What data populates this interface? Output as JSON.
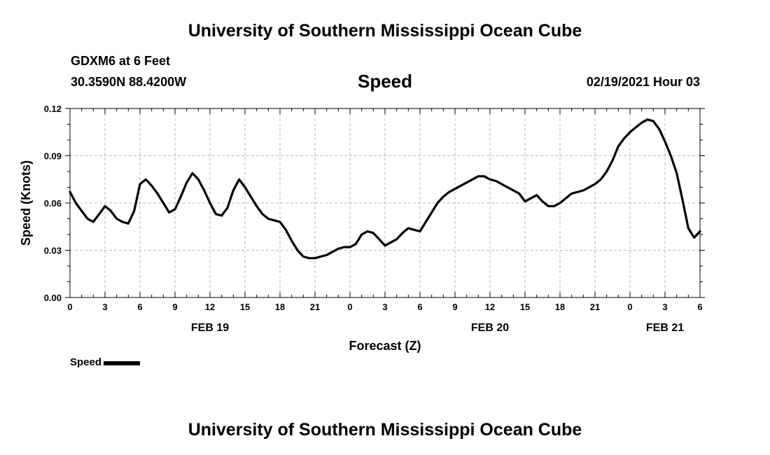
{
  "header": {
    "title": "University of Southern Mississippi Ocean Cube"
  },
  "station": {
    "name": "GDXM6 at 6 Feet",
    "coords": "30.3590N 88.4200W"
  },
  "variable": "Speed",
  "run": "02/19/2021 Hour 03",
  "footer": {
    "title": "University of Southern Mississippi Ocean Cube"
  },
  "legend": {
    "label": "Speed"
  },
  "chart_data": {
    "type": "line",
    "title": "Speed",
    "xlabel": "Forecast (Z)",
    "ylabel": "Speed (Knots)",
    "xlim": [
      0,
      54
    ],
    "ylim": [
      0,
      0.12
    ],
    "yticks": [
      "0.00",
      "0.03",
      "0.06",
      "0.09",
      "0.12"
    ],
    "ytick_values": [
      0,
      0.03,
      0.06,
      0.09,
      0.12
    ],
    "xticks": [
      "0",
      "3",
      "6",
      "9",
      "12",
      "15",
      "18",
      "21",
      "0",
      "3",
      "6",
      "9",
      "12",
      "15",
      "18",
      "21",
      "0",
      "3",
      "6"
    ],
    "xtick_values": [
      0,
      3,
      6,
      9,
      12,
      15,
      18,
      21,
      24,
      27,
      30,
      33,
      36,
      39,
      42,
      45,
      48,
      51,
      54
    ],
    "day_labels": [
      {
        "label": "FEB 19",
        "at": 12
      },
      {
        "label": "FEB 20",
        "at": 36
      },
      {
        "label": "FEB 21",
        "at": 51
      }
    ],
    "grid": true,
    "series": [
      {
        "name": "Speed",
        "color": "#000000",
        "x": [
          0,
          0.5,
          1,
          1.5,
          2,
          2.5,
          3,
          3.5,
          4,
          4.5,
          5,
          5.5,
          6,
          6.5,
          7,
          7.5,
          8,
          8.5,
          9,
          9.5,
          10,
          10.5,
          11,
          11.5,
          12,
          12.5,
          13,
          13.5,
          14,
          14.5,
          15,
          15.5,
          16,
          16.5,
          17,
          17.5,
          18,
          18.5,
          19,
          19.5,
          20,
          20.5,
          21,
          21.5,
          22,
          22.5,
          23,
          23.5,
          24,
          24.5,
          25,
          25.5,
          26,
          26.5,
          27,
          27.5,
          28,
          28.5,
          29,
          29.5,
          30,
          30.5,
          31,
          31.5,
          32,
          32.5,
          33,
          33.5,
          34,
          34.5,
          35,
          35.5,
          36,
          36.5,
          37,
          37.5,
          38,
          38.5,
          39,
          39.5,
          40,
          40.5,
          41,
          41.5,
          42,
          42.5,
          43,
          43.5,
          44,
          44.5,
          45,
          45.5,
          46,
          46.5,
          47,
          47.5,
          48,
          48.5,
          49,
          49.5,
          50,
          50.5,
          51,
          51.5,
          52,
          52.5,
          53,
          53.5,
          54
        ],
        "y": [
          0.067,
          0.06,
          0.055,
          0.05,
          0.048,
          0.053,
          0.058,
          0.055,
          0.05,
          0.048,
          0.047,
          0.055,
          0.072,
          0.075,
          0.071,
          0.066,
          0.06,
          0.054,
          0.056,
          0.064,
          0.073,
          0.079,
          0.075,
          0.068,
          0.06,
          0.053,
          0.052,
          0.057,
          0.068,
          0.075,
          0.07,
          0.064,
          0.058,
          0.053,
          0.05,
          0.049,
          0.048,
          0.043,
          0.036,
          0.03,
          0.026,
          0.025,
          0.025,
          0.026,
          0.027,
          0.029,
          0.031,
          0.032,
          0.032,
          0.034,
          0.04,
          0.042,
          0.041,
          0.037,
          0.033,
          0.035,
          0.037,
          0.041,
          0.044,
          0.043,
          0.042,
          0.048,
          0.054,
          0.06,
          0.064,
          0.067,
          0.069,
          0.071,
          0.073,
          0.075,
          0.077,
          0.077,
          0.075,
          0.074,
          0.072,
          0.07,
          0.068,
          0.066,
          0.061,
          0.063,
          0.065,
          0.061,
          0.058,
          0.058,
          0.06,
          0.063,
          0.066,
          0.067,
          0.068,
          0.07,
          0.072,
          0.075,
          0.08,
          0.087,
          0.096,
          0.101,
          0.105,
          0.108,
          0.111,
          0.113,
          0.112,
          0.107,
          0.099,
          0.09,
          0.079,
          0.062,
          0.044,
          0.038,
          0.042
        ]
      }
    ]
  }
}
